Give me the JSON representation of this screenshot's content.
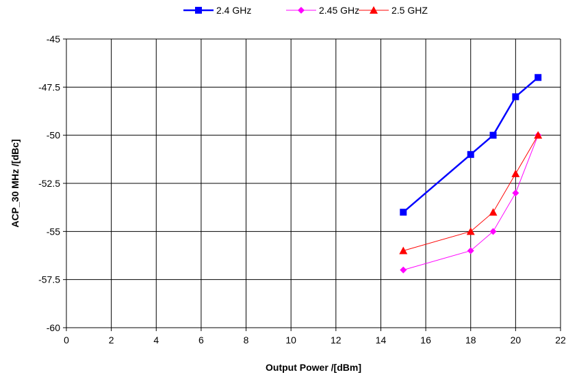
{
  "chart_data": {
    "type": "line",
    "xlabel": "Output Power /[dBm]",
    "ylabel": "ACP_30 MHz  /[dBc]",
    "xlim": [
      0,
      22
    ],
    "ylim": [
      -60,
      -45
    ],
    "xticks": [
      0,
      2,
      4,
      6,
      8,
      10,
      12,
      14,
      16,
      18,
      20,
      22
    ],
    "yticks": [
      -45,
      -47.5,
      -50,
      -52.5,
      -55,
      -57.5,
      -60
    ],
    "grid": true,
    "legend_position": "top",
    "series": [
      {
        "name": "2.4 GHz",
        "color": "#0000ff",
        "marker": "square",
        "x": [
          15,
          18,
          19,
          20,
          21
        ],
        "y": [
          -54,
          -51,
          -50,
          -48,
          -47
        ]
      },
      {
        "name": "2.45 GHz",
        "color": "#ff00ff",
        "marker": "diamond",
        "x": [
          15,
          18,
          19,
          20,
          21
        ],
        "y": [
          -57,
          -56,
          -55,
          -53,
          -50
        ]
      },
      {
        "name": "2.5 GHZ",
        "color": "#ff0000",
        "marker": "triangle",
        "x": [
          15,
          18,
          19,
          20,
          21
        ],
        "y": [
          -56,
          -55,
          -54,
          -52,
          -50
        ]
      }
    ]
  }
}
